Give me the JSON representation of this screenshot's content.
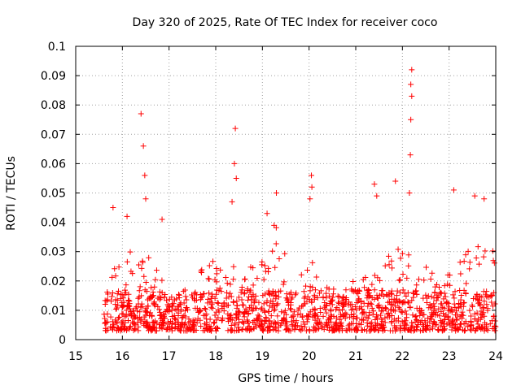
{
  "chart_data": {
    "type": "scatter",
    "title": "Day 320 of 2025, Rate Of TEC Index for receiver coco",
    "xlabel": "GPS time / hours",
    "ylabel": "ROTI / TECUs",
    "xlim": [
      15,
      24
    ],
    "ylim": [
      0,
      0.1
    ],
    "xticks": [
      "15",
      "16",
      "17",
      "18",
      "19",
      "20",
      "21",
      "22",
      "23",
      "24"
    ],
    "yticks": [
      "0",
      "0.01",
      "0.02",
      "0.03",
      "0.04",
      "0.05",
      "0.06",
      "0.07",
      "0.08",
      "0.09",
      "0.1"
    ],
    "grid": true,
    "marker": "+",
    "color": "#ff0000",
    "data_start_hour": 15.6,
    "data_end_hour": 24.0,
    "typical_range": [
      0.003,
      0.03
    ],
    "peaks": [
      {
        "x": 16.4,
        "y": 0.077
      },
      {
        "x": 16.45,
        "y": 0.066
      },
      {
        "x": 16.48,
        "y": 0.056
      },
      {
        "x": 16.5,
        "y": 0.048
      },
      {
        "x": 18.42,
        "y": 0.072
      },
      {
        "x": 18.4,
        "y": 0.06
      },
      {
        "x": 18.44,
        "y": 0.055
      },
      {
        "x": 18.35,
        "y": 0.047
      },
      {
        "x": 19.3,
        "y": 0.05
      },
      {
        "x": 19.1,
        "y": 0.043
      },
      {
        "x": 20.05,
        "y": 0.056
      },
      {
        "x": 20.06,
        "y": 0.052
      },
      {
        "x": 20.02,
        "y": 0.048
      },
      {
        "x": 21.4,
        "y": 0.053
      },
      {
        "x": 21.45,
        "y": 0.049
      },
      {
        "x": 21.85,
        "y": 0.054
      },
      {
        "x": 22.2,
        "y": 0.092
      },
      {
        "x": 22.18,
        "y": 0.087
      },
      {
        "x": 22.2,
        "y": 0.083
      },
      {
        "x": 22.18,
        "y": 0.075
      },
      {
        "x": 22.17,
        "y": 0.063
      },
      {
        "x": 22.15,
        "y": 0.05
      },
      {
        "x": 23.1,
        "y": 0.051
      },
      {
        "x": 23.55,
        "y": 0.049
      },
      {
        "x": 23.75,
        "y": 0.048
      },
      {
        "x": 15.8,
        "y": 0.045
      },
      {
        "x": 16.1,
        "y": 0.042
      },
      {
        "x": 16.85,
        "y": 0.041
      }
    ]
  }
}
